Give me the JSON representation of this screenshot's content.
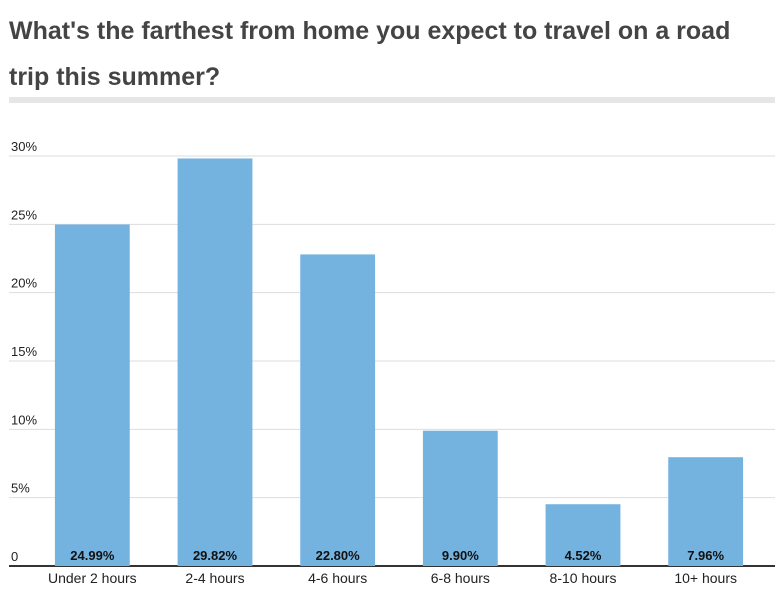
{
  "title": "What's the farthest from home you expect to travel on a road trip this summer?",
  "colors": {
    "bar": "#74b3e0",
    "grid": "#dddddd",
    "axis": "#333333",
    "title": "#444444"
  },
  "chart_data": {
    "type": "bar",
    "categories": [
      "Under 2 hours",
      "2-4 hours",
      "4-6 hours",
      "6-8 hours",
      "8-10 hours",
      "10+ hours"
    ],
    "values": [
      24.99,
      29.82,
      22.8,
      9.9,
      4.52,
      7.96
    ],
    "data_labels": [
      "24.99%",
      "29.82%",
      "22.80%",
      "9.90%",
      "4.52%",
      "7.96%"
    ],
    "ylim": [
      0,
      30
    ],
    "yticks": [
      0,
      5,
      10,
      15,
      20,
      25,
      30
    ],
    "ytick_labels": [
      "0",
      "5%",
      "10%",
      "15%",
      "20%",
      "25%",
      "30%"
    ],
    "grid": true,
    "xlabel": "",
    "ylabel": ""
  }
}
